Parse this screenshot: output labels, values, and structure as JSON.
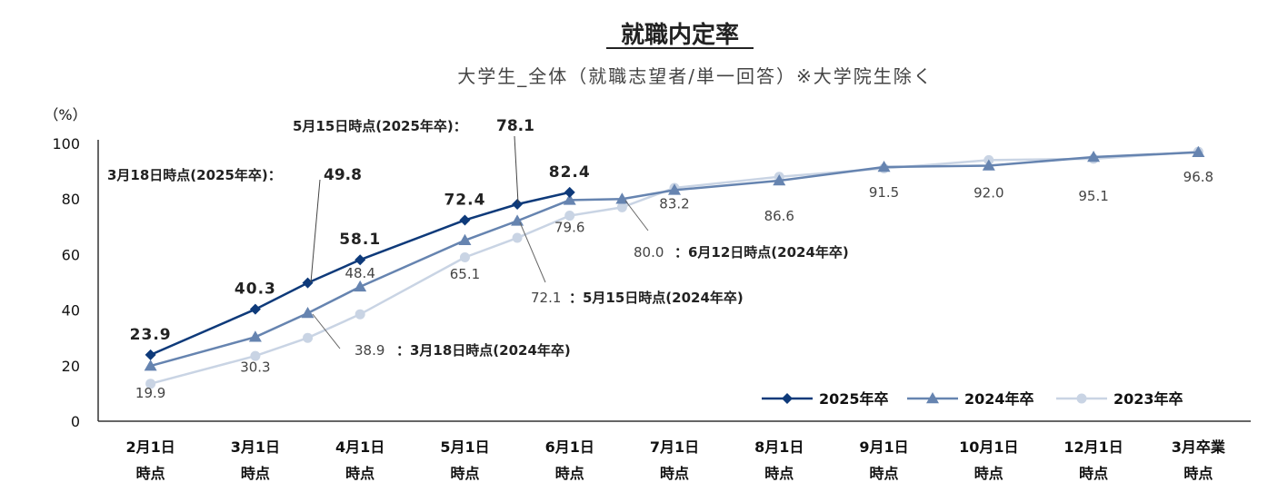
{
  "chart_data": {
    "type": "line",
    "title": "就職内定率",
    "subtitle": "大学生_全体（就職志望者/単一回答）※大学院生除く",
    "ylabel": "（%）",
    "ylim": [
      0,
      100
    ],
    "yticks": [
      "0",
      "20",
      "40",
      "60",
      "80",
      "100"
    ],
    "categories": [
      [
        "2月1日",
        "時点"
      ],
      [
        "3月1日",
        "時点"
      ],
      [
        "4月1日",
        "時点"
      ],
      [
        "5月1日",
        "時点"
      ],
      [
        "6月1日",
        "時点"
      ],
      [
        "7月1日",
        "時点"
      ],
      [
        "8月1日",
        "時点"
      ],
      [
        "9月1日",
        "時点"
      ],
      [
        "10月1日",
        "時点"
      ],
      [
        "12月1日",
        "時点"
      ],
      [
        "3月卒業",
        "時点"
      ]
    ],
    "legend_position": "bottom-right",
    "series": [
      {
        "name": "2025年卒",
        "color": "#0e3a7a",
        "marker": "diamond",
        "points": [
          {
            "x": 0,
            "y": 23.9,
            "label": "23.9"
          },
          {
            "x": 1,
            "y": 40.3,
            "label": "40.3"
          },
          {
            "x": 1.5,
            "y": 49.8
          },
          {
            "x": 2,
            "y": 58.1,
            "label": "58.1"
          },
          {
            "x": 3,
            "y": 72.4,
            "label": "72.4"
          },
          {
            "x": 3.5,
            "y": 78.1
          },
          {
            "x": 4,
            "y": 82.4,
            "label": "82.4"
          }
        ]
      },
      {
        "name": "2024年卒",
        "color": "#6684b0",
        "marker": "triangle",
        "points": [
          {
            "x": 0,
            "y": 19.9
          },
          {
            "x": 1,
            "y": 30.3
          },
          {
            "x": 1.5,
            "y": 38.9
          },
          {
            "x": 2,
            "y": 48.4
          },
          {
            "x": 3,
            "y": 65.1
          },
          {
            "x": 3.5,
            "y": 72.1
          },
          {
            "x": 4,
            "y": 79.6
          },
          {
            "x": 4.5,
            "y": 80.0
          },
          {
            "x": 5,
            "y": 83.2
          },
          {
            "x": 6,
            "y": 86.6
          },
          {
            "x": 7,
            "y": 91.5
          },
          {
            "x": 8,
            "y": 92.0
          },
          {
            "x": 9,
            "y": 95.1
          },
          {
            "x": 10,
            "y": 96.8
          }
        ]
      },
      {
        "name": "2023年卒",
        "color": "#c9d4e4",
        "marker": "circle",
        "points": [
          {
            "x": 0,
            "y": 13.5
          },
          {
            "x": 1,
            "y": 23.5
          },
          {
            "x": 1.5,
            "y": 30.0
          },
          {
            "x": 2,
            "y": 38.5
          },
          {
            "x": 3,
            "y": 59.0
          },
          {
            "x": 3.5,
            "y": 66.0
          },
          {
            "x": 4,
            "y": 74.0
          },
          {
            "x": 4.5,
            "y": 77.0
          },
          {
            "x": 5,
            "y": 84.0
          },
          {
            "x": 6,
            "y": 88.0
          },
          {
            "x": 7,
            "y": 91.0
          },
          {
            "x": 8,
            "y": 94.0
          },
          {
            "x": 9,
            "y": 94.5
          },
          {
            "x": 10,
            "y": 97.0
          }
        ]
      }
    ],
    "value_labels_2024": [
      {
        "cat": 0,
        "text": "19.9"
      },
      {
        "cat": 1,
        "text": "30.3"
      },
      {
        "cat": 2,
        "text": "48.4"
      },
      {
        "cat": 3,
        "text": "65.1"
      },
      {
        "cat": 4,
        "text": "79.6"
      },
      {
        "cat": 5,
        "text": "83.2"
      },
      {
        "cat": 6,
        "text": "86.6"
      },
      {
        "cat": 7,
        "text": "91.5"
      },
      {
        "cat": 8,
        "text": "92.0"
      },
      {
        "cat": 9,
        "text": "95.1"
      },
      {
        "cat": 10,
        "text": "96.8"
      }
    ],
    "annotations": {
      "a25_0318_text": "3月18日時点(2025年卒)：",
      "a25_0318_value": "49.8",
      "a25_0515_text": "5月15日時点(2025年卒)：",
      "a25_0515_value": "78.1",
      "a24_0318_value": "38.9",
      "a24_0318_text": "：3月18日時点(2024年卒)",
      "a24_0515_value": "72.1",
      "a24_0515_text": "：5月15日時点(2024年卒)",
      "a24_0612_value": "80.0",
      "a24_0612_text": "：6月12日時点(2024年卒)"
    }
  }
}
